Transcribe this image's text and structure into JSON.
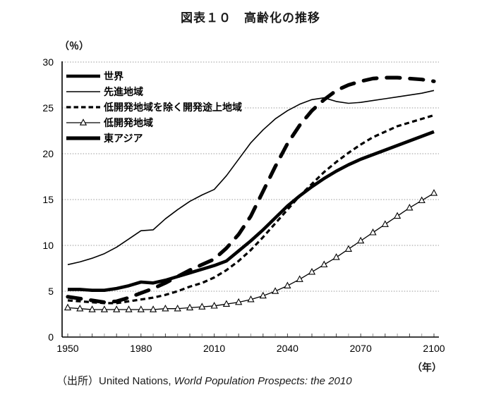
{
  "title": "図表１０　高齢化の推移",
  "source": {
    "prefix": "（出所）",
    "publisher": "United Nations, ",
    "publication": "World Population Prospects: the 2010"
  },
  "chart_data": {
    "type": "line",
    "title": "図表１０　高齢化の推移",
    "xlabel": "（年）",
    "ylabel": "（％）",
    "xlim": [
      1950,
      2100
    ],
    "ylim": [
      0,
      30
    ],
    "y_ticks": [
      0,
      5,
      10,
      15,
      20,
      25,
      30
    ],
    "x_ticks_labeled": [
      1950,
      1980,
      2010,
      2040,
      2070,
      2100
    ],
    "x_minor_tick_step": 5,
    "grid": "horizontal-dotted",
    "legend_position": "top-left-inside",
    "colors": {
      "line": "#000000",
      "grid": "#999999",
      "background": "#ffffff"
    },
    "x": [
      1950,
      1955,
      1960,
      1965,
      1970,
      1975,
      1980,
      1985,
      1990,
      1995,
      2000,
      2005,
      2010,
      2015,
      2020,
      2025,
      2030,
      2035,
      2040,
      2045,
      2050,
      2055,
      2060,
      2065,
      2070,
      2075,
      2080,
      2085,
      2090,
      2095,
      2100
    ],
    "series": [
      {
        "name": "世界",
        "key": "world",
        "style": {
          "stroke_width": 4.6,
          "dash": "solid",
          "marker": "none"
        },
        "values": [
          5.2,
          5.2,
          5.1,
          5.1,
          5.3,
          5.6,
          6.0,
          5.9,
          6.2,
          6.6,
          7.0,
          7.4,
          7.8,
          8.3,
          9.4,
          10.5,
          11.7,
          13.0,
          14.3,
          15.4,
          16.4,
          17.3,
          18.1,
          18.8,
          19.4,
          19.9,
          20.4,
          20.9,
          21.4,
          21.9,
          22.4
        ]
      },
      {
        "name": "先進地域",
        "key": "developed-regions",
        "style": {
          "stroke_width": 1.6,
          "dash": "solid",
          "marker": "none"
        },
        "values": [
          7.9,
          8.2,
          8.6,
          9.1,
          9.8,
          10.7,
          11.6,
          11.7,
          12.9,
          13.9,
          14.8,
          15.5,
          16.1,
          17.6,
          19.4,
          21.2,
          22.6,
          23.8,
          24.7,
          25.4,
          25.9,
          26.1,
          25.7,
          25.5,
          25.6,
          25.8,
          26.0,
          26.2,
          26.4,
          26.6,
          26.9
        ]
      },
      {
        "name": "低開発地域を除く開発途上地域",
        "key": "developing-excluding-least-developed",
        "style": {
          "stroke_width": 3.2,
          "dash": "short-dash",
          "marker": "none"
        },
        "values": [
          4.0,
          3.9,
          3.8,
          3.7,
          3.7,
          3.9,
          4.1,
          4.3,
          4.6,
          5.0,
          5.5,
          5.9,
          6.5,
          7.3,
          8.3,
          9.5,
          10.9,
          12.4,
          13.9,
          15.4,
          16.7,
          18.0,
          19.1,
          20.1,
          21.0,
          21.8,
          22.4,
          23.0,
          23.4,
          23.8,
          24.2
        ]
      },
      {
        "name": "低開発地域",
        "key": "least-developed-regions",
        "style": {
          "stroke_width": 1.3,
          "dash": "solid",
          "marker": "open-triangle"
        },
        "values": [
          3.2,
          3.1,
          3.0,
          3.0,
          3.0,
          3.0,
          3.0,
          3.0,
          3.1,
          3.1,
          3.2,
          3.3,
          3.4,
          3.6,
          3.8,
          4.1,
          4.5,
          5.0,
          5.6,
          6.3,
          7.1,
          7.9,
          8.7,
          9.6,
          10.5,
          11.4,
          12.3,
          13.2,
          14.1,
          14.9,
          15.7
        ]
      },
      {
        "name": "東アジア",
        "key": "east-asia",
        "style": {
          "stroke_width": 5.2,
          "dash": "long-dash",
          "marker": "none"
        },
        "values": [
          4.4,
          4.2,
          4.0,
          3.8,
          3.9,
          4.3,
          4.8,
          5.3,
          5.9,
          6.6,
          7.3,
          7.9,
          8.5,
          9.7,
          11.2,
          13.2,
          15.9,
          18.6,
          21.1,
          23.1,
          24.7,
          25.9,
          26.9,
          27.5,
          27.9,
          28.2,
          28.3,
          28.3,
          28.2,
          28.1,
          27.9
        ]
      }
    ]
  }
}
